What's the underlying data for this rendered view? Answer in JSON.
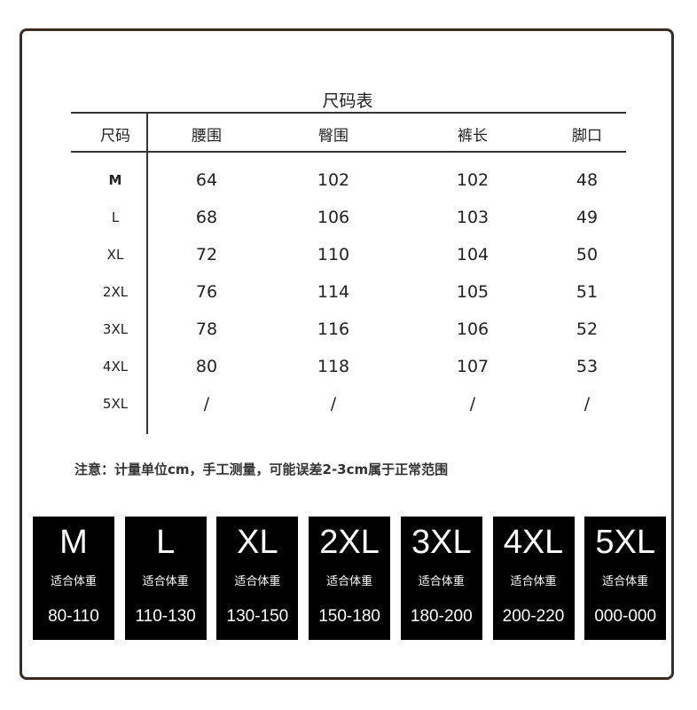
{
  "title": "尺码表",
  "table": {
    "headers": [
      "尺码",
      "腰围",
      "臀围",
      "裤长",
      "脚口"
    ],
    "rows": [
      [
        "M",
        "64",
        "102",
        "102",
        "48"
      ],
      [
        "L",
        "68",
        "106",
        "103",
        "49"
      ],
      [
        "XL",
        "72",
        "110",
        "104",
        "50"
      ],
      [
        "2XL",
        "76",
        "114",
        "105",
        "51"
      ],
      [
        "3XL",
        "78",
        "116",
        "106",
        "52"
      ],
      [
        "4XL",
        "80",
        "118",
        "107",
        "53"
      ],
      [
        "5XL",
        "/",
        "/",
        "/",
        "/"
      ]
    ]
  },
  "note": "注意：计量单位cm，手工测量，可能误差2-3cm属于正常范围",
  "weight_cards": [
    {
      "size": "M",
      "label": "适合体重",
      "range": "80-110"
    },
    {
      "size": "L",
      "label": "适合体重",
      "range": "110-130"
    },
    {
      "size": "XL",
      "label": "适合体重",
      "range": "130-150"
    },
    {
      "size": "2XL",
      "label": "适合体重",
      "range": "150-180"
    },
    {
      "size": "3XL",
      "label": "适合体重",
      "range": "180-200"
    },
    {
      "size": "4XL",
      "label": "适合体重",
      "range": "200-220"
    },
    {
      "size": "5XL",
      "label": "适合体重",
      "range": "000-000"
    }
  ]
}
